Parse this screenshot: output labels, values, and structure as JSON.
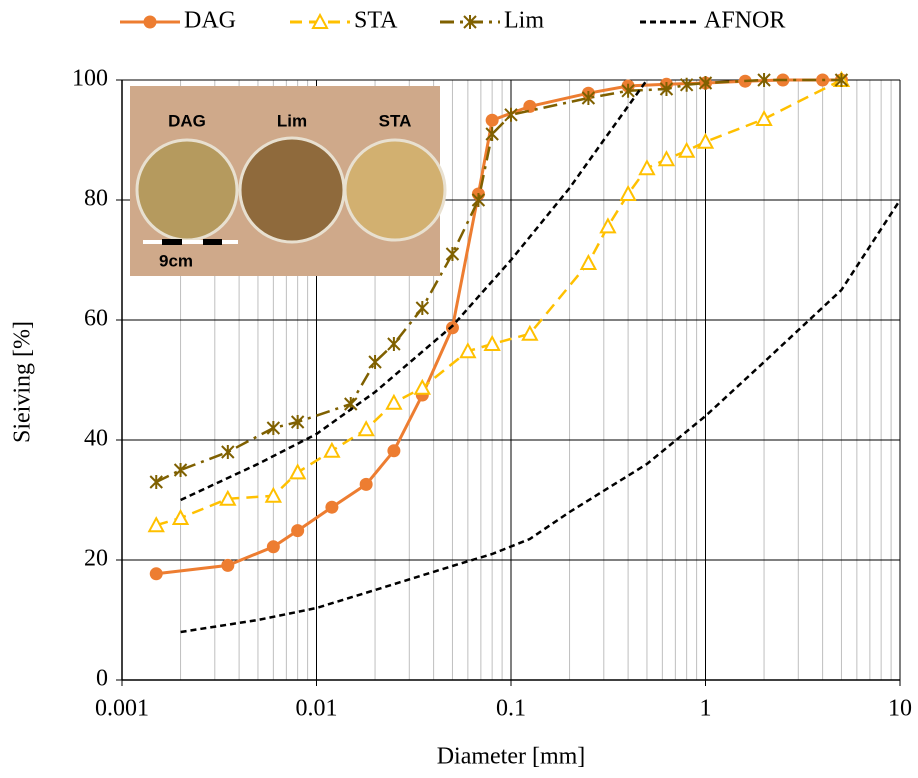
{
  "chart_data": {
    "type": "line",
    "x_label": "Diameter [mm]",
    "y_label": "Sieiving [%]",
    "xscale": "log",
    "xlim": [
      0.001,
      10
    ],
    "ylim": [
      0,
      100
    ],
    "xticks": [
      0.001,
      0.01,
      0.1,
      1,
      10
    ],
    "xminor_ticks": [
      0.002,
      0.003,
      0.004,
      0.005,
      0.006,
      0.007,
      0.008,
      0.009,
      0.02,
      0.03,
      0.04,
      0.05,
      0.06,
      0.07,
      0.08,
      0.09,
      0.2,
      0.3,
      0.4,
      0.5,
      0.6,
      0.7,
      0.8,
      0.9,
      2,
      3,
      4,
      5,
      6,
      7,
      8,
      9
    ],
    "yticks": [
      0,
      20,
      40,
      60,
      80,
      100
    ],
    "grid": true,
    "legend": "top",
    "photo_labels": [
      "DAG",
      "Lim",
      "STA"
    ],
    "photo_scale_label": "9cm",
    "series": [
      {
        "name": "DAG",
        "color": "#ED7D31",
        "dash": "solid",
        "marker": "circle",
        "x": [
          0.0015,
          0.0035,
          0.006,
          0.008,
          0.012,
          0.018,
          0.025,
          0.035,
          0.05,
          0.068,
          0.08,
          0.125,
          0.25,
          0.4,
          0.63,
          1,
          1.6,
          2.5,
          4,
          5
        ],
        "values": [
          17.7,
          19.1,
          22.2,
          24.9,
          28.8,
          32.6,
          38.2,
          47.5,
          58.7,
          81,
          93.3,
          95.6,
          97.8,
          99,
          99.3,
          99.5,
          99.8,
          100,
          100,
          100
        ]
      },
      {
        "name": "STA",
        "color": "#FFC000",
        "dash": "dashed",
        "marker": "triangle",
        "x": [
          0.0015,
          0.002,
          0.0035,
          0.006,
          0.008,
          0.012,
          0.018,
          0.025,
          0.035,
          0.06,
          0.08,
          0.125,
          0.25,
          0.315,
          0.4,
          0.5,
          0.63,
          0.8,
          1,
          2,
          5
        ],
        "values": [
          25.8,
          27,
          30.2,
          30.7,
          34.6,
          38.2,
          41.8,
          46.2,
          48.7,
          54.8,
          56,
          57.7,
          69.5,
          75.6,
          81,
          85.3,
          86.8,
          88.2,
          89.7,
          93.5,
          100
        ]
      },
      {
        "name": "Lim",
        "color": "#7F6000",
        "dash": "dashdot",
        "marker": "star",
        "x": [
          0.0015,
          0.002,
          0.0035,
          0.006,
          0.008,
          0.015,
          0.02,
          0.025,
          0.035,
          0.05,
          0.068,
          0.08,
          0.1,
          0.25,
          0.4,
          0.63,
          0.8,
          1,
          2,
          5
        ],
        "values": [
          33,
          35,
          38,
          42,
          43,
          46,
          53,
          56,
          62,
          71,
          80,
          91,
          94.2,
          97,
          98.2,
          98.5,
          99.2,
          99.5,
          100,
          100
        ]
      },
      {
        "name": "AFNOR",
        "color": "#000000",
        "dash": "dotted",
        "marker": "none",
        "x": [
          0.002,
          0.005,
          0.01,
          0.02,
          0.05,
          0.1,
          0.2,
          0.3,
          0.5,
          null,
          0.002,
          0.005,
          0.01,
          0.02,
          0.05,
          0.08,
          0.125,
          0.2,
          0.5,
          1,
          2,
          5,
          10
        ],
        "values": [
          30,
          36,
          41,
          48,
          59,
          70,
          82,
          90,
          100,
          null,
          8,
          10,
          12,
          15,
          19,
          21,
          23.5,
          28,
          36,
          44,
          53,
          65,
          80
        ]
      }
    ]
  }
}
